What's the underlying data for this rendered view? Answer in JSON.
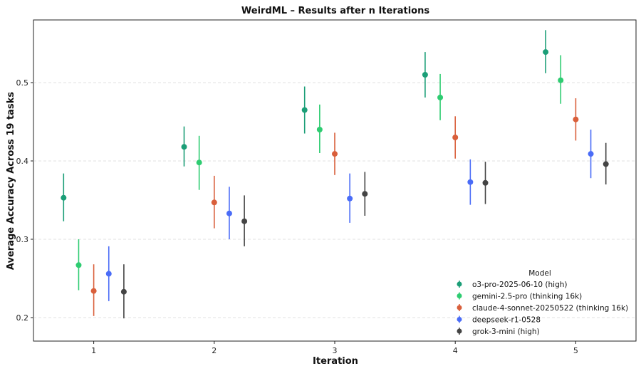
{
  "chart_data": {
    "type": "scatter",
    "title": "WeirdML – Results after n Iterations",
    "xlabel": "Iteration",
    "ylabel": "Average Accuracy Across 19 tasks",
    "x": [
      1,
      2,
      3,
      4,
      5
    ],
    "xlim": [
      0.5,
      5.5
    ],
    "ylim": [
      0.17,
      0.58
    ],
    "yticks": [
      0.2,
      0.3,
      0.4,
      0.5
    ],
    "ytick_labels": [
      "0.2",
      "0.3",
      "0.4",
      "0.5"
    ],
    "xtick_labels": [
      "1",
      "2",
      "3",
      "4",
      "5"
    ],
    "grid": "horizontal dashed",
    "legend": {
      "title": "Model",
      "placement": "lower-right"
    },
    "series": [
      {
        "name": "o3-pro-2025-06-10 (high)",
        "color": "#1b9e77",
        "offset": -0.25,
        "values": [
          0.353,
          0.418,
          0.465,
          0.51,
          0.539
        ],
        "lower": [
          0.323,
          0.393,
          0.435,
          0.481,
          0.512
        ],
        "upper": [
          0.384,
          0.444,
          0.495,
          0.539,
          0.567
        ]
      },
      {
        "name": "gemini-2.5-pro (thinking 16k)",
        "color": "#2ecc71",
        "offset": -0.125,
        "values": [
          0.267,
          0.398,
          0.44,
          0.481,
          0.503
        ],
        "lower": [
          0.235,
          0.363,
          0.41,
          0.452,
          0.473
        ],
        "upper": [
          0.3,
          0.432,
          0.472,
          0.511,
          0.535
        ]
      },
      {
        "name": "claude-4-sonnet-20250522 (thinking 16k)",
        "color": "#d95f3b",
        "offset": 0,
        "values": [
          0.234,
          0.347,
          0.409,
          0.43,
          0.453
        ],
        "lower": [
          0.202,
          0.314,
          0.382,
          0.403,
          0.426
        ],
        "upper": [
          0.268,
          0.381,
          0.436,
          0.457,
          0.48
        ]
      },
      {
        "name": "deepseek-r1-0528",
        "color": "#4a6cf7",
        "offset": 0.125,
        "values": [
          0.256,
          0.333,
          0.352,
          0.373,
          0.409
        ],
        "lower": [
          0.221,
          0.3,
          0.321,
          0.344,
          0.378
        ],
        "upper": [
          0.291,
          0.367,
          0.384,
          0.402,
          0.44
        ]
      },
      {
        "name": "grok-3-mini (high)",
        "color": "#444444",
        "offset": 0.25,
        "values": [
          0.233,
          0.323,
          0.358,
          0.372,
          0.396
        ],
        "lower": [
          0.199,
          0.291,
          0.33,
          0.345,
          0.37
        ],
        "upper": [
          0.268,
          0.356,
          0.386,
          0.399,
          0.423
        ]
      }
    ]
  }
}
